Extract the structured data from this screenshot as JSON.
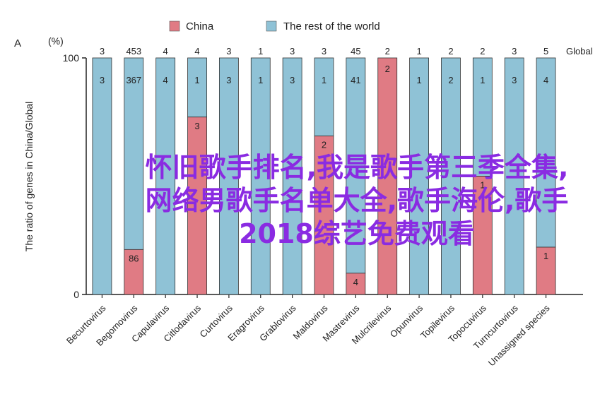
{
  "chart_data": {
    "type": "bar",
    "stacked": true,
    "panel_label": "A",
    "ylabel": "The ratio of genes in China/Global",
    "yunit": "(%)",
    "ylim": [
      0,
      100
    ],
    "yticks": [
      0,
      100
    ],
    "global_label": "Global",
    "legend": {
      "placement": "top",
      "items": [
        {
          "name": "China",
          "color": "#e07b84"
        },
        {
          "name": "The rest of the world",
          "color": "#8fc2d6"
        }
      ]
    },
    "categories": [
      "Becurtovirus",
      "Begomovirus",
      "Capulavirus",
      "Citlodavirus",
      "Curtovirus",
      "Eragrovirus",
      "Grablovirus",
      "Maldovirus",
      "Mastrevirus",
      "Mulcrilevirus",
      "Opunvirus",
      "Topilevirus",
      "Topocuvirus",
      "Turncurtovirus",
      "Unassigned species"
    ],
    "global_counts": [
      "3",
      "453",
      "4",
      "4",
      "3",
      "1",
      "3",
      "3",
      "45",
      "2",
      "1",
      "2",
      "2",
      "3",
      "5"
    ],
    "china_percent": [
      0,
      19,
      0,
      75,
      0,
      0,
      0,
      67,
      9,
      100,
      0,
      0,
      50,
      0,
      20
    ],
    "china_labels": [
      "",
      "86",
      "",
      "3",
      "",
      "",
      "",
      "2",
      "4",
      "2",
      "",
      "",
      "1",
      "",
      "1"
    ],
    "rest_labels": [
      "3",
      "367",
      "4",
      "1",
      "3",
      "1",
      "3",
      "1",
      "41",
      "",
      "1",
      "2",
      "1",
      "3",
      "4"
    ]
  },
  "overlay_text": "怀旧歌手排名,我是歌手第三季全集,网络男歌手名单大全,歌手海伦,歌手2018综艺免费观看"
}
